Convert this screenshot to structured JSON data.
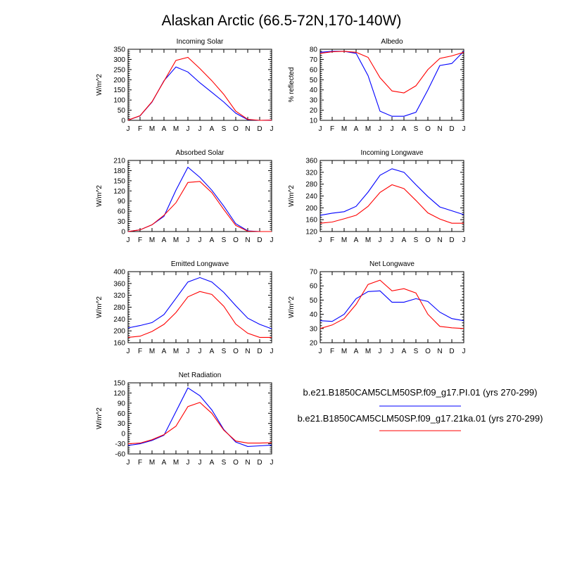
{
  "figure_title": "Alaskan Arctic (66.5-72N,170-140W)",
  "legend": [
    {
      "label": "b.e21.B1850CAM5CLM50SP.f09_g17.PI.01 (yrs 270-299)",
      "color": "#0000ff"
    },
    {
      "label": "b.e21.B1850CAM5CLM50SP.f09_g17.21ka.01 (yrs 270-299)",
      "color": "#ff0000"
    }
  ],
  "chart_data": [
    {
      "type": "line",
      "title": "Incoming Solar",
      "xlabel": "",
      "ylabel": "W/m^2",
      "categories": [
        "J",
        "F",
        "M",
        "A",
        "M",
        "J",
        "J",
        "A",
        "S",
        "O",
        "N",
        "D",
        "J"
      ],
      "yticks": [
        0,
        50,
        100,
        150,
        200,
        250,
        300,
        350
      ],
      "ylim": [
        0,
        350
      ],
      "series": [
        {
          "name": "PI.01",
          "color": "#0000ff",
          "values": [
            1,
            22,
            90,
            195,
            263,
            238,
            185,
            138,
            90,
            35,
            3,
            0,
            1
          ]
        },
        {
          "name": "21ka.01",
          "color": "#ff0000",
          "values": [
            1,
            23,
            92,
            193,
            295,
            310,
            255,
            195,
            128,
            45,
            5,
            0,
            1
          ]
        }
      ]
    },
    {
      "type": "line",
      "title": "Albedo",
      "xlabel": "",
      "ylabel": "% reflected",
      "categories": [
        "J",
        "F",
        "M",
        "A",
        "M",
        "J",
        "J",
        "A",
        "S",
        "O",
        "N",
        "D",
        "J"
      ],
      "yticks": [
        10,
        20,
        30,
        40,
        50,
        60,
        70,
        80
      ],
      "ylim": [
        10,
        80
      ],
      "series": [
        {
          "name": "PI.01",
          "color": "#0000ff",
          "values": [
            77,
            78,
            78,
            76,
            54,
            19,
            14,
            14,
            18,
            40,
            64,
            66,
            78
          ]
        },
        {
          "name": "21ka.01",
          "color": "#ff0000",
          "values": [
            76,
            77.5,
            78,
            77,
            72,
            52,
            39,
            37,
            44,
            60,
            71,
            73.5,
            77
          ]
        }
      ]
    },
    {
      "type": "line",
      "title": "Absorbed Solar",
      "xlabel": "",
      "ylabel": "W/m^2",
      "categories": [
        "J",
        "F",
        "M",
        "A",
        "M",
        "J",
        "J",
        "A",
        "S",
        "O",
        "N",
        "D",
        "J"
      ],
      "yticks": [
        0,
        30,
        60,
        90,
        120,
        150,
        180,
        210
      ],
      "ylim": [
        0,
        210
      ],
      "series": [
        {
          "name": "PI.01",
          "color": "#0000ff",
          "values": [
            0,
            5,
            20,
            45,
            122,
            190,
            160,
            122,
            75,
            23,
            2,
            0,
            0
          ]
        },
        {
          "name": "21ka.01",
          "color": "#ff0000",
          "values": [
            0,
            5,
            20,
            48,
            85,
            145,
            148,
            115,
            65,
            18,
            1,
            0,
            0
          ]
        }
      ]
    },
    {
      "type": "line",
      "title": "Incoming Longwave",
      "xlabel": "",
      "ylabel": "W/m^2",
      "categories": [
        "J",
        "F",
        "M",
        "A",
        "M",
        "J",
        "J",
        "A",
        "S",
        "O",
        "N",
        "D",
        "J"
      ],
      "yticks": [
        120,
        160,
        200,
        240,
        280,
        320,
        360
      ],
      "ylim": [
        120,
        360
      ],
      "series": [
        {
          "name": "PI.01",
          "color": "#0000ff",
          "values": [
            175,
            182,
            187,
            205,
            253,
            310,
            332,
            320,
            278,
            238,
            203,
            190,
            177
          ]
        },
        {
          "name": "21ka.01",
          "color": "#ff0000",
          "values": [
            148,
            152,
            163,
            175,
            205,
            252,
            278,
            265,
            225,
            183,
            162,
            148,
            148
          ]
        }
      ]
    },
    {
      "type": "line",
      "title": "Emitted Longwave",
      "xlabel": "",
      "ylabel": "W/m^2",
      "categories": [
        "J",
        "F",
        "M",
        "A",
        "M",
        "J",
        "J",
        "A",
        "S",
        "O",
        "N",
        "D",
        "J"
      ],
      "yticks": [
        160,
        200,
        240,
        280,
        320,
        360,
        400
      ],
      "ylim": [
        160,
        400
      ],
      "series": [
        {
          "name": "PI.01",
          "color": "#0000ff",
          "values": [
            210,
            218,
            228,
            255,
            310,
            365,
            380,
            365,
            330,
            285,
            243,
            222,
            207
          ]
        },
        {
          "name": "21ka.01",
          "color": "#ff0000",
          "values": [
            178,
            182,
            198,
            222,
            262,
            315,
            333,
            323,
            283,
            223,
            192,
            178,
            178
          ]
        }
      ]
    },
    {
      "type": "line",
      "title": "Net Longwave",
      "xlabel": "",
      "ylabel": "W/m^2",
      "categories": [
        "J",
        "F",
        "M",
        "A",
        "M",
        "J",
        "J",
        "A",
        "S",
        "O",
        "N",
        "D",
        "J"
      ],
      "yticks": [
        20,
        30,
        40,
        50,
        60,
        70
      ],
      "ylim": [
        20,
        70
      ],
      "series": [
        {
          "name": "PI.01",
          "color": "#0000ff",
          "values": [
            35.5,
            35,
            40,
            51,
            56,
            56.5,
            48.5,
            48.5,
            51,
            49,
            41.5,
            37,
            35.5
          ]
        },
        {
          "name": "21ka.01",
          "color": "#ff0000",
          "values": [
            30,
            32.5,
            37,
            47,
            61,
            64,
            56.5,
            58,
            55,
            40,
            31.5,
            30.5,
            30
          ]
        }
      ]
    },
    {
      "type": "line",
      "title": "Net Radiation",
      "xlabel": "",
      "ylabel": "W/m^2",
      "categories": [
        "J",
        "F",
        "M",
        "A",
        "M",
        "J",
        "J",
        "A",
        "S",
        "O",
        "N",
        "D",
        "J"
      ],
      "yticks": [
        -60,
        -30,
        0,
        30,
        60,
        90,
        120,
        150
      ],
      "ylim": [
        -60,
        150
      ],
      "series": [
        {
          "name": "PI.01",
          "color": "#0000ff",
          "values": [
            -35,
            -30,
            -20,
            -5,
            65,
            135,
            112,
            70,
            12,
            -25,
            -38,
            -36,
            -34
          ]
        },
        {
          "name": "21ka.01",
          "color": "#ff0000",
          "values": [
            -30,
            -28,
            -18,
            -3,
            22,
            80,
            92,
            60,
            10,
            -22,
            -28,
            -28,
            -27
          ]
        }
      ]
    }
  ]
}
